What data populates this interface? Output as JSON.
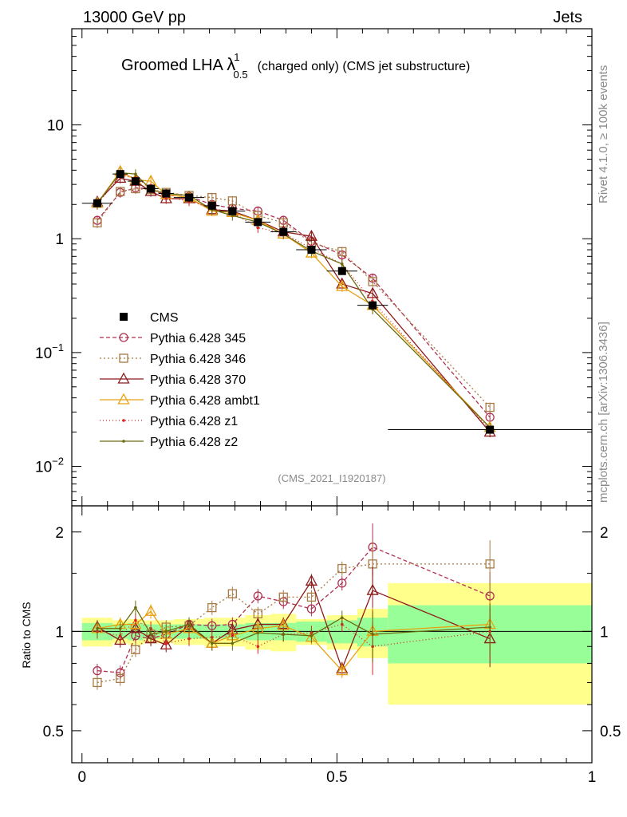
{
  "header": {
    "energy_label": "13000 GeV pp",
    "category_label": "Jets",
    "side_label_rivet": "Rivet 4.1.0, ≥ 100k events",
    "side_label_mcplots": "mcplots.cern.ch [arXiv:1306.3436]",
    "analysis_id": "(CMS_2021_I1920187)",
    "title_main": "Groomed LHA ",
    "title_lambda": "λ",
    "title_sup": "1",
    "title_sub": "0.5",
    "title_rest": "(charged only) (CMS jet substructure)"
  },
  "chart_data": {
    "type": "line",
    "x_edges": [
      0,
      0.06,
      0.09,
      0.12,
      0.15,
      0.18,
      0.24,
      0.27,
      0.32,
      0.37,
      0.42,
      0.48,
      0.54,
      0.6,
      1.0
    ],
    "x_centers": [
      0.03,
      0.075,
      0.105,
      0.135,
      0.165,
      0.21,
      0.255,
      0.295,
      0.345,
      0.395,
      0.45,
      0.51,
      0.57,
      0.8
    ],
    "main": {
      "yscale": "log",
      "ylim": [
        0.0045,
        70
      ],
      "yticks": [
        {
          "value": 10,
          "base": "10",
          "exp": ""
        },
        {
          "value": 1,
          "base": "1",
          "exp": ""
        },
        {
          "value": 0.1,
          "base": "10",
          "exp": "−1"
        },
        {
          "value": 0.01,
          "base": "10",
          "exp": "−2"
        }
      ]
    },
    "ratio": {
      "ylabel": "Ratio to CMS",
      "ylim": [
        0.4,
        2.4
      ],
      "yticks": [
        {
          "value": 0.5,
          "label": "0.5"
        },
        {
          "value": 1,
          "label": "1"
        },
        {
          "value": 2,
          "label": "2"
        }
      ],
      "band_green": [
        0.06,
        0.05,
        0.06,
        0.05,
        0.05,
        0.05,
        0.05,
        0.05,
        0.06,
        0.06,
        0.07,
        0.08,
        0.1,
        0.2
      ],
      "band_yellow": [
        0.1,
        0.08,
        0.09,
        0.08,
        0.08,
        0.09,
        0.1,
        0.1,
        0.12,
        0.13,
        0.09,
        0.12,
        0.17,
        0.4
      ]
    },
    "xlim": [
      -0.02,
      1.0
    ],
    "xticks": [
      {
        "value": 0,
        "label": "0"
      },
      {
        "value": 0.5,
        "label": "0.5"
      },
      {
        "value": 1,
        "label": "1"
      }
    ],
    "data": {
      "name": "CMS",
      "values": [
        2.05,
        3.7,
        3.2,
        2.75,
        2.5,
        2.3,
        1.95,
        1.75,
        1.4,
        1.15,
        0.8,
        0.52,
        0.26,
        0.021
      ]
    },
    "series": [
      {
        "name": "Pythia 6.428 345",
        "color": "#b03050",
        "dash": "5,3",
        "marker": "circle",
        "values": [
          1.45,
          2.55,
          2.8,
          2.75,
          2.4,
          2.35,
          2.0,
          1.85,
          1.75,
          1.45,
          0.95,
          0.72,
          0.45,
          0.027
        ],
        "ratio": [
          0.76,
          0.75,
          0.97,
          0.95,
          0.98,
          1.05,
          1.04,
          1.05,
          1.28,
          1.23,
          1.17,
          1.4,
          1.8,
          1.28
        ]
      },
      {
        "name": "Pythia 6.428 346",
        "color": "#a87a44",
        "dash": "2,3",
        "marker": "square",
        "values": [
          1.38,
          2.6,
          2.75,
          2.7,
          2.55,
          2.4,
          2.3,
          2.15,
          1.6,
          1.38,
          0.92,
          0.77,
          0.42,
          0.033
        ],
        "ratio": [
          0.7,
          0.72,
          0.88,
          0.98,
          1.03,
          1.04,
          1.18,
          1.3,
          1.13,
          1.27,
          1.27,
          1.55,
          1.6,
          1.6
        ]
      },
      {
        "name": "Pythia 6.428 370",
        "color": "#8b1a1a",
        "dash": "",
        "marker": "triangle",
        "values": [
          2.1,
          3.4,
          3.2,
          2.6,
          2.25,
          2.25,
          1.8,
          1.75,
          1.45,
          1.15,
          1.05,
          0.4,
          0.33,
          0.02
        ],
        "ratio": [
          1.03,
          0.94,
          1.02,
          0.95,
          0.91,
          1.04,
          0.92,
          1.01,
          1.05,
          1.05,
          1.42,
          0.77,
          1.33,
          0.95
        ]
      },
      {
        "name": "Pythia 6.428 ambt1",
        "color": "#e8a010",
        "dash": "",
        "marker": "triangle",
        "values": [
          2.05,
          3.9,
          3.3,
          3.2,
          2.45,
          2.3,
          1.75,
          1.7,
          1.45,
          1.1,
          0.75,
          0.38,
          0.26,
          0.022
        ],
        "ratio": [
          1.02,
          1.05,
          1.05,
          1.15,
          0.98,
          1.02,
          0.92,
          0.97,
          1.02,
          1.04,
          0.96,
          0.76,
          1.0,
          1.05
        ]
      },
      {
        "name": "Pythia 6.428 z1",
        "color": "#dd2222",
        "dash": "1,3",
        "marker": "dot",
        "values": [
          2.0,
          3.6,
          3.45,
          2.8,
          2.3,
          2.15,
          1.85,
          1.7,
          1.25,
          1.12,
          0.82,
          0.6,
          0.28,
          0.021
        ],
        "ratio": [
          1.0,
          0.97,
          1.08,
          1.02,
          0.92,
          0.95,
          0.96,
          0.97,
          0.9,
          0.98,
          0.99,
          1.05,
          0.9,
          1.0
        ]
      },
      {
        "name": "Pythia 6.428 z2",
        "color": "#6b6b10",
        "dash": "",
        "marker": "dot",
        "values": [
          2.05,
          3.8,
          3.7,
          2.7,
          2.5,
          2.4,
          1.8,
          1.6,
          1.4,
          1.1,
          0.78,
          0.6,
          0.24,
          0.022
        ],
        "ratio": [
          1.02,
          1.02,
          1.18,
          0.98,
          1.0,
          1.05,
          0.92,
          0.92,
          0.99,
          0.98,
          0.97,
          1.1,
          0.98,
          1.03
        ]
      }
    ]
  }
}
